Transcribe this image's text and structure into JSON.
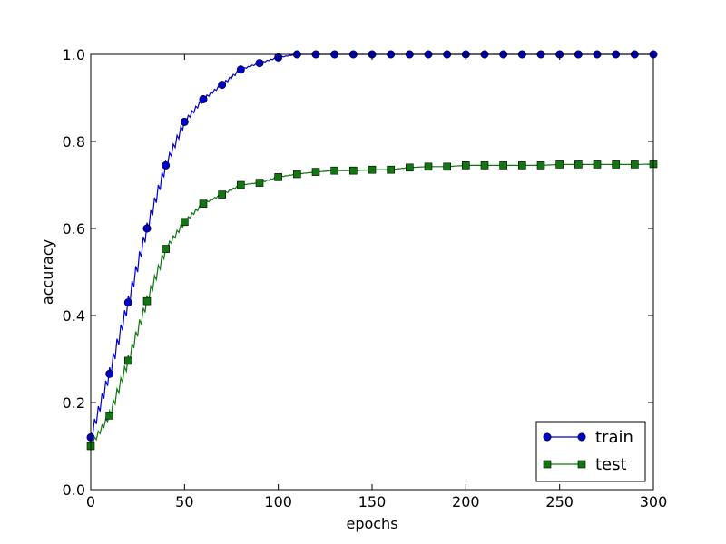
{
  "chart_data": {
    "type": "line",
    "xlabel": "epochs",
    "ylabel": "accuracy",
    "xlim": [
      0,
      300
    ],
    "ylim": [
      0.0,
      1.0
    ],
    "x_ticks": [
      0,
      50,
      100,
      150,
      200,
      250,
      300
    ],
    "y_ticks": [
      0.0,
      0.2,
      0.4,
      0.6,
      0.8,
      1.0
    ],
    "x_tick_labels": [
      "0",
      "50",
      "100",
      "150",
      "200",
      "250",
      "300"
    ],
    "y_tick_labels": [
      "0.0",
      "0.2",
      "0.4",
      "0.6",
      "0.8",
      "1.0"
    ],
    "grid": false,
    "legend_position": "lower-right",
    "x": [
      0,
      10,
      20,
      30,
      40,
      50,
      60,
      70,
      80,
      90,
      100,
      110,
      120,
      130,
      140,
      150,
      160,
      170,
      180,
      190,
      200,
      210,
      220,
      230,
      240,
      250,
      260,
      270,
      280,
      290,
      300
    ],
    "series": [
      {
        "name": "train",
        "color": "#0000cc",
        "marker": "circle",
        "values": [
          0.12,
          0.266,
          0.43,
          0.6,
          0.745,
          0.845,
          0.897,
          0.93,
          0.965,
          0.98,
          0.993,
          1.0,
          1.0,
          1.0,
          1.0,
          1.0,
          1.0,
          1.0,
          1.0,
          1.0,
          1.0,
          1.0,
          1.0,
          1.0,
          1.0,
          1.0,
          1.0,
          1.0,
          1.0,
          1.0,
          1.0
        ]
      },
      {
        "name": "test",
        "color": "#117711",
        "marker": "square",
        "values": [
          0.1,
          0.17,
          0.296,
          0.433,
          0.553,
          0.615,
          0.657,
          0.678,
          0.7,
          0.705,
          0.718,
          0.725,
          0.73,
          0.733,
          0.733,
          0.735,
          0.735,
          0.74,
          0.742,
          0.742,
          0.745,
          0.745,
          0.745,
          0.745,
          0.745,
          0.747,
          0.747,
          0.747,
          0.747,
          0.747,
          0.748
        ]
      }
    ]
  }
}
